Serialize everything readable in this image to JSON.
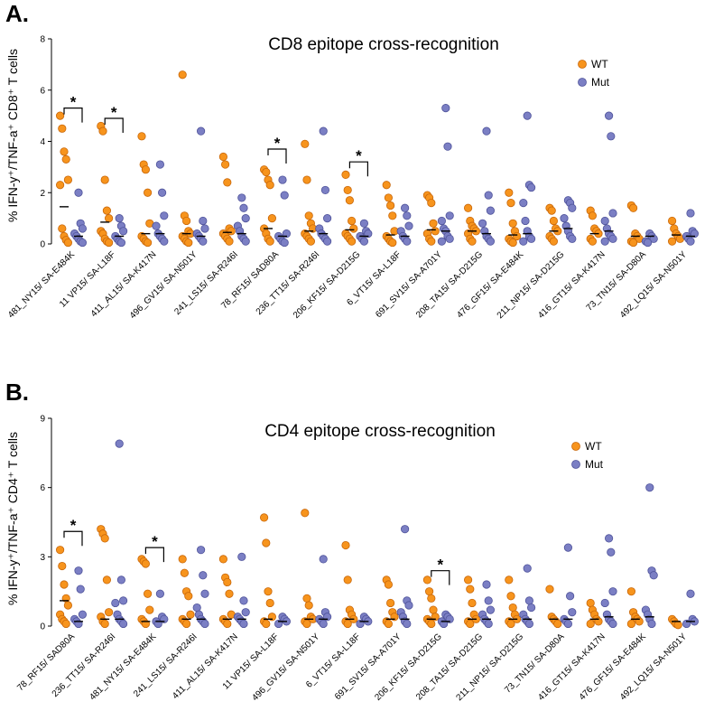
{
  "chart_data": [
    {
      "type": "scatter",
      "panel": "A.",
      "title": "CD8 epitope cross-recognition",
      "ylabel": "% IFN-y⁺/TNF-a⁺  CD8⁺ T cells",
      "ylim": [
        0,
        8
      ],
      "yticks": [
        0,
        2,
        4,
        6,
        8
      ],
      "legend": [
        {
          "name": "WT",
          "color": "#F7941D"
        },
        {
          "name": "Mut",
          "color": "#7B7FC4"
        }
      ],
      "categories": [
        "481_NY15/ SA-E484K",
        "11 VP15/ SA-L18F",
        "411_AL15/ SA-K417N",
        "496_GV15/ SA-N501Y",
        "241_LS15/ SA-R246I",
        "78_RF15/ SAD80A",
        "236_TT15/ SA-R246I",
        "206_KF15/ SA-D215G",
        "6_VT15/ SA-L18F",
        "691_SV15/ SA-A701Y",
        "208_TA15/ SA-D215G",
        "476_GF15/ SA-E484K",
        "211_NP15/ SA-D215G",
        "416_GT15/ SA-K417N",
        "73_TN15/ SA-D80A",
        "492_LQ15/ SA-N501Y"
      ],
      "wt": [
        [
          5.0,
          4.5,
          3.6,
          3.3,
          2.5,
          2.3,
          0.6,
          0.3,
          0.15,
          0.05
        ],
        [
          4.6,
          4.4,
          2.5,
          1.3,
          1.0,
          0.5,
          0.4,
          0.2,
          0.1,
          0.05
        ],
        [
          4.2,
          3.1,
          2.9,
          2.0,
          0.8,
          0.3,
          0.2,
          0.1,
          0.05
        ],
        [
          6.6,
          1.1,
          0.9,
          0.5,
          0.4,
          0.3,
          0.2,
          0.1,
          0.05
        ],
        [
          3.4,
          3.1,
          2.4,
          0.6,
          0.5,
          0.4,
          0.3,
          0.2,
          0.1
        ],
        [
          2.9,
          2.8,
          2.5,
          2.3,
          1.0,
          0.6,
          0.4,
          0.2,
          0.1
        ],
        [
          3.9,
          2.5,
          1.1,
          0.8,
          0.6,
          0.4,
          0.3,
          0.2,
          0.1
        ],
        [
          2.7,
          2.1,
          1.7,
          0.9,
          0.6,
          0.4,
          0.3,
          0.2,
          0.1
        ],
        [
          2.3,
          1.8,
          1.5,
          1.1,
          0.5,
          0.3,
          0.2,
          0.1,
          0.05
        ],
        [
          1.9,
          1.8,
          1.6,
          0.8,
          0.5,
          0.4,
          0.2,
          0.1
        ],
        [
          1.4,
          0.9,
          0.7,
          0.6,
          0.5,
          0.4,
          0.2,
          0.1
        ],
        [
          2.0,
          1.6,
          0.8,
          0.5,
          0.3,
          0.2,
          0.1,
          0.05
        ],
        [
          1.4,
          1.3,
          0.9,
          0.6,
          0.5,
          0.3,
          0.2,
          0.1
        ],
        [
          1.3,
          1.1,
          0.6,
          0.5,
          0.4,
          0.2,
          0.1
        ],
        [
          1.5,
          1.4,
          0.4,
          0.3,
          0.2,
          0.1,
          0.05
        ],
        [
          0.9,
          0.6,
          0.4,
          0.3,
          0.2,
          0.1
        ]
      ],
      "mut": [
        [
          2.0,
          0.8,
          0.6,
          0.4,
          0.3,
          0.2,
          0.1,
          0.05
        ],
        [
          1.0,
          0.7,
          0.5,
          0.3,
          0.2,
          0.1,
          0.05
        ],
        [
          3.1,
          2.0,
          1.1,
          0.7,
          0.4,
          0.3,
          0.2,
          0.1
        ],
        [
          4.4,
          0.9,
          0.6,
          0.4,
          0.3,
          0.2,
          0.1
        ],
        [
          1.8,
          1.4,
          1.0,
          0.7,
          0.5,
          0.3,
          0.2,
          0.1
        ],
        [
          2.5,
          1.9,
          0.4,
          0.3,
          0.2,
          0.1,
          0.05
        ],
        [
          4.4,
          2.1,
          1.0,
          0.6,
          0.4,
          0.3,
          0.2,
          0.1
        ],
        [
          0.8,
          0.5,
          0.4,
          0.3,
          0.2,
          0.1
        ],
        [
          1.4,
          1.1,
          0.7,
          0.5,
          0.3,
          0.2,
          0.1
        ],
        [
          5.3,
          3.8,
          1.1,
          0.9,
          0.6,
          0.5,
          0.3,
          0.2,
          0.1
        ],
        [
          4.4,
          1.9,
          1.3,
          0.8,
          0.5,
          0.3,
          0.2,
          0.1
        ],
        [
          5.0,
          2.3,
          2.2,
          1.6,
          0.9,
          0.5,
          0.3,
          0.2,
          0.1
        ],
        [
          1.7,
          1.6,
          1.4,
          1.0,
          0.7,
          0.5,
          0.3,
          0.2
        ],
        [
          5.0,
          4.2,
          1.2,
          0.9,
          0.6,
          0.4,
          0.3,
          0.2,
          0.1
        ],
        [
          0.4,
          0.3,
          0.2,
          0.1,
          0.05
        ],
        [
          1.2,
          0.5,
          0.4,
          0.3,
          0.2,
          0.1
        ]
      ],
      "wt_median": [
        1.45,
        0.85,
        0.4,
        0.4,
        0.45,
        0.6,
        0.5,
        0.55,
        0.35,
        0.55,
        0.5,
        0.35,
        0.5,
        0.4,
        0.3,
        0.35
      ],
      "mut_median": [
        0.3,
        0.3,
        0.4,
        0.3,
        0.4,
        0.3,
        0.4,
        0.3,
        0.3,
        0.5,
        0.4,
        0.4,
        0.6,
        0.5,
        0.3,
        0.3
      ],
      "significance": [
        {
          "category": 0,
          "label": "*",
          "level": 5.3
        },
        {
          "category": 1,
          "label": "*",
          "level": 4.9
        },
        {
          "category": 5,
          "label": "*",
          "level": 3.7
        },
        {
          "category": 7,
          "label": "*",
          "level": 3.2
        }
      ]
    },
    {
      "type": "scatter",
      "panel": "B.",
      "title": "CD4 epitope cross-recognition",
      "ylabel": "% IFN-y⁺/TNF-a⁺  CD4⁺ T cells",
      "ylim": [
        0,
        9
      ],
      "yticks": [
        0,
        3,
        6,
        9
      ],
      "legend": [
        {
          "name": "WT",
          "color": "#F7941D"
        },
        {
          "name": "Mut",
          "color": "#7B7FC4"
        }
      ],
      "categories": [
        "78_RF15/ SAD80A",
        "236_TT15/ SA-R246I",
        "481_NY15/ SA-E484K",
        "241_LS15/ SA-R246I",
        "411_AL15/ SA-K417N",
        "11 VP15/ SA-L18F",
        "496_GV15/ SA-N501Y",
        "6_VT15/ SA-L18F",
        "691_SV15/ SA-A701Y",
        "206_KF15/ SA-D215G",
        "208_TA15/ SA-D215G",
        "211_NP15/ SA-D215G",
        "73_TN15/ SA-D80A",
        "416_GT15/ SA-K417N",
        "476_GF15/ SA-E484K",
        "492_LQ15/ SA-N501Y"
      ],
      "wt": [
        [
          3.3,
          2.6,
          1.8,
          1.2,
          0.9,
          0.5,
          0.3,
          0.2,
          0.1
        ],
        [
          4.2,
          4.0,
          3.8,
          2.0,
          0.6,
          0.4,
          0.2,
          0.1
        ],
        [
          2.9,
          2.8,
          2.7,
          1.4,
          0.7,
          0.3,
          0.2,
          0.1
        ],
        [
          2.9,
          2.3,
          1.5,
          1.3,
          0.5,
          0.3,
          0.2,
          0.1
        ],
        [
          2.9,
          2.1,
          1.9,
          1.4,
          0.5,
          0.3,
          0.2,
          0.1
        ],
        [
          4.7,
          3.6,
          1.5,
          1.0,
          0.4,
          0.2,
          0.1
        ],
        [
          4.9,
          1.2,
          0.9,
          0.4,
          0.3,
          0.2,
          0.1
        ],
        [
          3.5,
          2.0,
          0.7,
          0.5,
          0.3,
          0.2,
          0.1
        ],
        [
          2.0,
          1.8,
          1.0,
          0.6,
          0.4,
          0.2,
          0.1
        ],
        [
          2.0,
          1.5,
          1.2,
          0.7,
          0.4,
          0.3,
          0.2,
          0.1
        ],
        [
          2.0,
          1.6,
          1.0,
          0.5,
          0.3,
          0.2,
          0.1
        ],
        [
          2.0,
          1.3,
          0.8,
          0.5,
          0.3,
          0.2,
          0.1
        ],
        [
          1.6,
          0.4,
          0.3,
          0.2,
          0.1
        ],
        [
          1.0,
          0.7,
          0.5,
          0.3,
          0.2,
          0.1
        ],
        [
          1.5,
          0.6,
          0.4,
          0.3,
          0.2,
          0.1
        ],
        [
          0.3,
          0.2,
          0.1,
          0.05
        ]
      ],
      "mut": [
        [
          2.4,
          1.6,
          0.5,
          0.3,
          0.2,
          0.1
        ],
        [
          7.9,
          2.0,
          1.1,
          1.0,
          0.5,
          0.3,
          0.2,
          0.1
        ],
        [
          1.4,
          0.4,
          0.3,
          0.2,
          0.1
        ],
        [
          3.3,
          2.2,
          1.4,
          0.8,
          0.5,
          0.3,
          0.2,
          0.1
        ],
        [
          3.0,
          1.1,
          0.6,
          0.4,
          0.3,
          0.2,
          0.1
        ],
        [
          0.4,
          0.3,
          0.2,
          0.1
        ],
        [
          2.9,
          0.6,
          0.4,
          0.3,
          0.2,
          0.1
        ],
        [
          0.4,
          0.3,
          0.2,
          0.1
        ],
        [
          4.2,
          1.1,
          0.9,
          0.6,
          0.4,
          0.2,
          0.1
        ],
        [
          0.5,
          0.4,
          0.3,
          0.2,
          0.1
        ],
        [
          1.8,
          1.1,
          0.7,
          0.5,
          0.3,
          0.2,
          0.1
        ],
        [
          2.5,
          1.1,
          0.8,
          0.5,
          0.3,
          0.2,
          0.1
        ],
        [
          3.4,
          1.3,
          0.6,
          0.3,
          0.2,
          0.1
        ],
        [
          3.8,
          3.2,
          1.5,
          1.0,
          0.5,
          0.3,
          0.2,
          0.1
        ],
        [
          6.0,
          2.4,
          2.2,
          0.7,
          0.5,
          0.3,
          0.1
        ],
        [
          1.4,
          0.3,
          0.2,
          0.1
        ]
      ],
      "wt_median": [
        1.1,
        0.3,
        0.2,
        0.3,
        0.3,
        0.3,
        0.3,
        0.3,
        0.3,
        0.3,
        0.3,
        0.3,
        0.3,
        0.3,
        0.3,
        0.2
      ],
      "mut_median": [
        0.2,
        0.3,
        0.2,
        0.3,
        0.3,
        0.2,
        0.3,
        0.2,
        0.3,
        0.2,
        0.3,
        0.3,
        0.3,
        0.4,
        0.4,
        0.2
      ],
      "significance": [
        {
          "category": 0,
          "label": "*",
          "level": 4.1
        },
        {
          "category": 2,
          "label": "*",
          "level": 3.4
        },
        {
          "category": 9,
          "label": "*",
          "level": 2.4
        }
      ]
    }
  ]
}
